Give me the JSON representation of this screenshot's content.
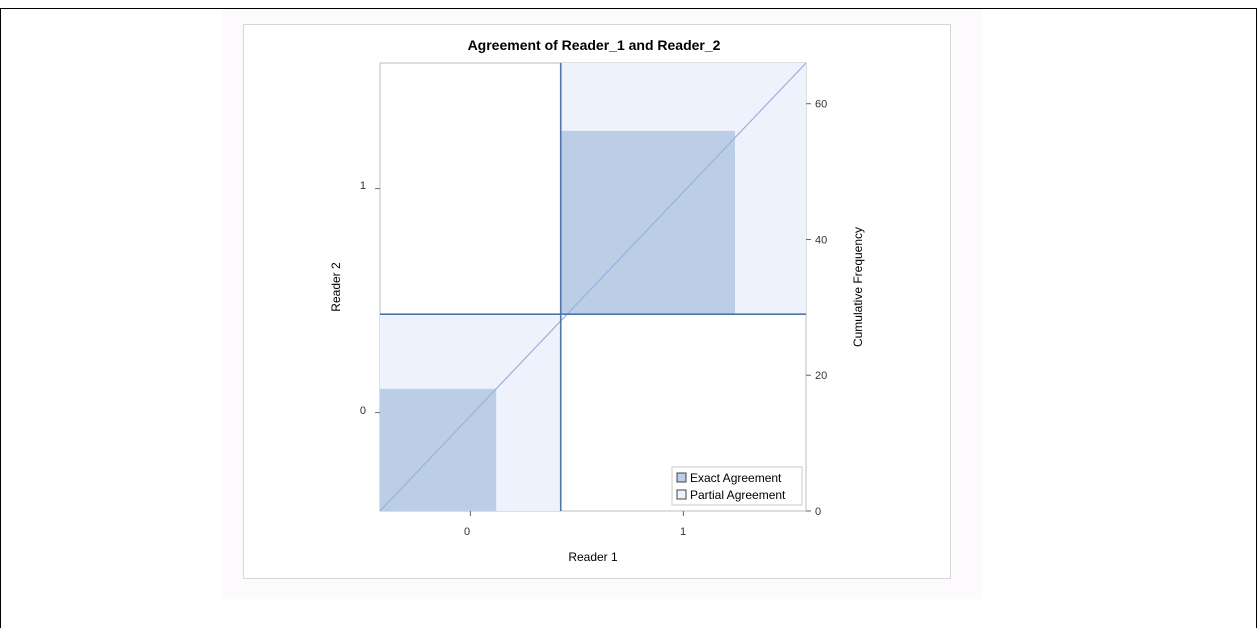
{
  "chart_data": {
    "type": "agreement-plot",
    "title": "Agreement of Reader_1 and Reader_2",
    "xlabel": "Reader 1",
    "ylabel": "Reader 2",
    "y2label": "Cumulative Frequency",
    "categories": [
      "0",
      "1"
    ],
    "row_totals": [
      29,
      37
    ],
    "col_totals": [
      28,
      38
    ],
    "cells": [
      [
        18,
        11
      ],
      [
        10,
        27
      ]
    ],
    "total": 66,
    "y2_ticks": [
      0,
      20,
      40,
      60
    ],
    "y2_range": [
      0,
      66
    ],
    "legend": {
      "placement": "bottom-right",
      "items": [
        {
          "label": "Exact Agreement",
          "color": "#bccde6"
        },
        {
          "label": "Partial Agreement",
          "color": "#eef2fd"
        }
      ]
    },
    "colors": {
      "exact": "#bccde6",
      "partial": "#eef2fd",
      "divider": "#4f76a8",
      "diagonal": "#97b2dd"
    }
  }
}
